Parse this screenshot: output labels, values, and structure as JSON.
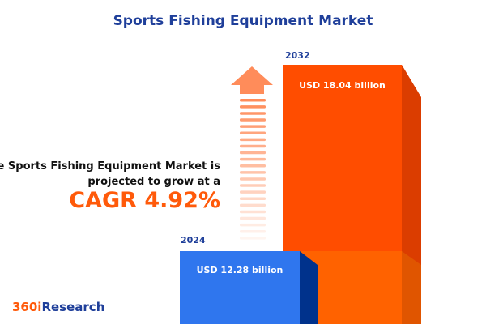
{
  "title": "Sports Fishing Equipment Market",
  "description": "The Sports Fishing Equipment Market is projected to grow at a",
  "cagr": "CAGR 4.92%",
  "logo": {
    "part1": "360i",
    "part2": "Research"
  },
  "chart_data": {
    "type": "bar",
    "categories": [
      "2024",
      "2032"
    ],
    "values": [
      12.28,
      18.04
    ],
    "data_labels": [
      "USD 12.28 billion",
      "USD 18.04 billion"
    ],
    "unit": "USD billion",
    "colors": {
      "2024": "#2f76ee",
      "2032": "#ff4d00"
    }
  }
}
